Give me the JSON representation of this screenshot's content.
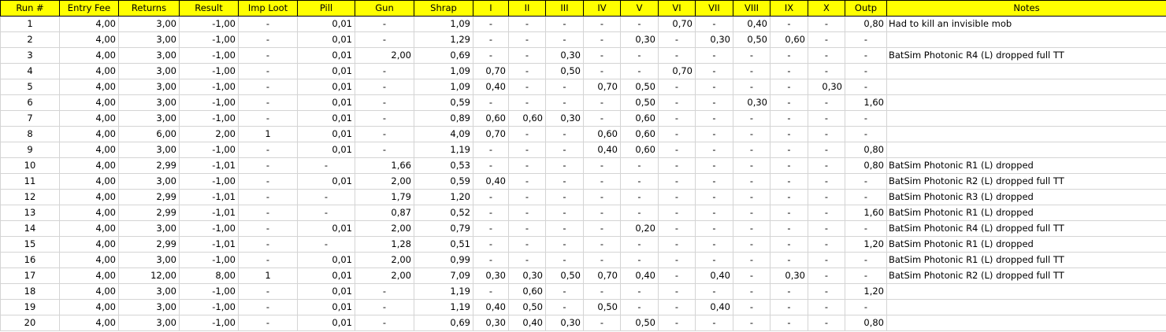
{
  "sheet": {
    "headers": [
      "Run #",
      "Entry Fee",
      "Returns",
      "Result",
      "Imp Loot",
      "Pill",
      "Gun",
      "Shrap",
      "I",
      "II",
      "III",
      "IV",
      "V",
      "VI",
      "VII",
      "VIII",
      "IX",
      "X",
      "Outp",
      "Notes"
    ],
    "header_color": "#ffff00",
    "rows": [
      [
        "1",
        "4,00",
        "3,00",
        "-1,00",
        "-",
        "0,01",
        "-",
        "1,09",
        "-",
        "-",
        "-",
        "-",
        "-",
        "0,70",
        "-",
        "0,40",
        "-",
        "-",
        "0,80",
        "Had to kill an invisible mob"
      ],
      [
        "2",
        "4,00",
        "3,00",
        "-1,00",
        "-",
        "0,01",
        "-",
        "1,29",
        "-",
        "-",
        "-",
        "-",
        "0,30",
        "-",
        "0,30",
        "0,50",
        "0,60",
        "-",
        "-",
        ""
      ],
      [
        "3",
        "4,00",
        "3,00",
        "-1,00",
        "-",
        "0,01",
        "2,00",
        "0,69",
        "-",
        "-",
        "0,30",
        "-",
        "-",
        "-",
        "-",
        "-",
        "-",
        "-",
        "-",
        "BatSim Photonic R4 (L) dropped full TT"
      ],
      [
        "4",
        "4,00",
        "3,00",
        "-1,00",
        "-",
        "0,01",
        "-",
        "1,09",
        "0,70",
        "-",
        "0,50",
        "-",
        "-",
        "0,70",
        "-",
        "-",
        "-",
        "-",
        "-",
        ""
      ],
      [
        "5",
        "4,00",
        "3,00",
        "-1,00",
        "-",
        "0,01",
        "-",
        "1,09",
        "0,40",
        "-",
        "-",
        "0,70",
        "0,50",
        "-",
        "-",
        "-",
        "-",
        "0,30",
        "-",
        ""
      ],
      [
        "6",
        "4,00",
        "3,00",
        "-1,00",
        "-",
        "0,01",
        "-",
        "0,59",
        "-",
        "-",
        "-",
        "-",
        "0,50",
        "-",
        "-",
        "0,30",
        "-",
        "-",
        "1,60",
        ""
      ],
      [
        "7",
        "4,00",
        "3,00",
        "-1,00",
        "-",
        "0,01",
        "-",
        "0,89",
        "0,60",
        "0,60",
        "0,30",
        "-",
        "0,60",
        "-",
        "-",
        "-",
        "-",
        "-",
        "-",
        ""
      ],
      [
        "8",
        "4,00",
        "6,00",
        "2,00",
        "1",
        "0,01",
        "-",
        "4,09",
        "0,70",
        "-",
        "-",
        "0,60",
        "0,60",
        "-",
        "-",
        "-",
        "-",
        "-",
        "-",
        ""
      ],
      [
        "9",
        "4,00",
        "3,00",
        "-1,00",
        "-",
        "0,01",
        "-",
        "1,19",
        "-",
        "-",
        "-",
        "0,40",
        "0,60",
        "-",
        "-",
        "-",
        "-",
        "-",
        "0,80",
        ""
      ],
      [
        "10",
        "4,00",
        "2,99",
        "-1,01",
        "-",
        "-",
        "1,66",
        "0,53",
        "-",
        "-",
        "-",
        "-",
        "-",
        "-",
        "-",
        "-",
        "-",
        "-",
        "0,80",
        "BatSim Photonic R1 (L) dropped"
      ],
      [
        "11",
        "4,00",
        "3,00",
        "-1,00",
        "-",
        "0,01",
        "2,00",
        "0,59",
        "0,40",
        "-",
        "-",
        "-",
        "-",
        "-",
        "-",
        "-",
        "-",
        "-",
        "-",
        "BatSim Photonic R2 (L) dropped full TT"
      ],
      [
        "12",
        "4,00",
        "2,99",
        "-1,01",
        "-",
        "-",
        "1,79",
        "1,20",
        "-",
        "-",
        "-",
        "-",
        "-",
        "-",
        "-",
        "-",
        "-",
        "-",
        "-",
        "BatSim Photonic R3 (L) dropped"
      ],
      [
        "13",
        "4,00",
        "2,99",
        "-1,01",
        "-",
        "-",
        "0,87",
        "0,52",
        "-",
        "-",
        "-",
        "-",
        "-",
        "-",
        "-",
        "-",
        "-",
        "-",
        "1,60",
        "BatSim Photonic R1 (L) dropped"
      ],
      [
        "14",
        "4,00",
        "3,00",
        "-1,00",
        "-",
        "0,01",
        "2,00",
        "0,79",
        "-",
        "-",
        "-",
        "-",
        "0,20",
        "-",
        "-",
        "-",
        "-",
        "-",
        "-",
        "BatSim Photonic R4 (L) dropped full TT"
      ],
      [
        "15",
        "4,00",
        "2,99",
        "-1,01",
        "-",
        "-",
        "1,28",
        "0,51",
        "-",
        "-",
        "-",
        "-",
        "-",
        "-",
        "-",
        "-",
        "-",
        "-",
        "1,20",
        "BatSim Photonic R1 (L) dropped"
      ],
      [
        "16",
        "4,00",
        "3,00",
        "-1,00",
        "-",
        "0,01",
        "2,00",
        "0,99",
        "-",
        "-",
        "-",
        "-",
        "-",
        "-",
        "-",
        "-",
        "-",
        "-",
        "-",
        "BatSim Photonic R1 (L) dropped full TT"
      ],
      [
        "17",
        "4,00",
        "12,00",
        "8,00",
        "1",
        "0,01",
        "2,00",
        "7,09",
        "0,30",
        "0,30",
        "0,50",
        "0,70",
        "0,40",
        "-",
        "0,40",
        "-",
        "0,30",
        "-",
        "-",
        "BatSim Photonic R2 (L) dropped full TT"
      ],
      [
        "18",
        "4,00",
        "3,00",
        "-1,00",
        "-",
        "0,01",
        "-",
        "1,19",
        "-",
        "0,60",
        "-",
        "-",
        "-",
        "-",
        "-",
        "-",
        "-",
        "-",
        "1,20",
        ""
      ],
      [
        "19",
        "4,00",
        "3,00",
        "-1,00",
        "-",
        "0,01",
        "-",
        "1,19",
        "0,40",
        "0,50",
        "-",
        "0,50",
        "-",
        "-",
        "0,40",
        "-",
        "-",
        "-",
        "-",
        ""
      ],
      [
        "20",
        "4,00",
        "3,00",
        "-1,00",
        "-",
        "0,01",
        "-",
        "0,69",
        "0,30",
        "0,40",
        "0,30",
        "-",
        "0,50",
        "-",
        "-",
        "-",
        "-",
        "-",
        "0,80",
        ""
      ]
    ]
  }
}
